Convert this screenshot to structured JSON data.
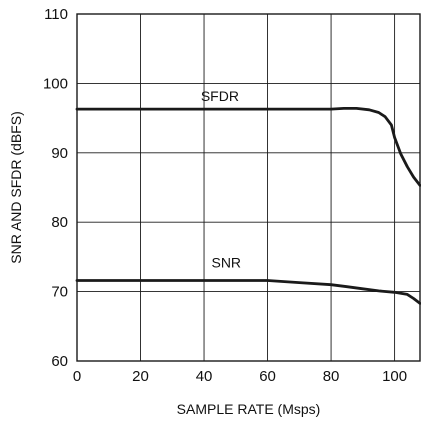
{
  "chart_data": {
    "type": "line",
    "title": "",
    "xlabel": "SAMPLE RATE (Msps)",
    "ylabel": "SNR AND SFDR (dBFS)",
    "xlim": [
      0,
      108
    ],
    "ylim": [
      60,
      110
    ],
    "xticks": [
      0,
      20,
      40,
      60,
      80,
      100
    ],
    "xtick_labels": [
      "0",
      "20",
      "40",
      "60",
      "80",
      "100"
    ],
    "yticks": [
      60,
      70,
      80,
      90,
      100,
      110
    ],
    "ytick_labels": [
      "60",
      "70",
      "80",
      "90",
      "100",
      "110"
    ],
    "grid": true,
    "legend": "none",
    "line_color": "#1a1a1a",
    "series": [
      {
        "name": "SFDR",
        "label_at": [
          45,
          97.5
        ],
        "x": [
          0,
          20,
          40,
          60,
          80,
          84,
          88,
          92,
          95,
          97,
          99,
          100,
          102,
          104,
          106,
          108
        ],
        "y": [
          96.3,
          96.3,
          96.3,
          96.3,
          96.3,
          96.4,
          96.4,
          96.2,
          95.8,
          95.2,
          94.0,
          92.2,
          89.8,
          88.0,
          86.5,
          85.3
        ]
      },
      {
        "name": "SNR",
        "label_at": [
          47,
          73.5
        ],
        "x": [
          0,
          20,
          40,
          60,
          70,
          80,
          85,
          90,
          95,
          100,
          104,
          106,
          108
        ],
        "y": [
          71.6,
          71.6,
          71.6,
          71.6,
          71.3,
          71.0,
          70.7,
          70.4,
          70.1,
          69.9,
          69.6,
          69.0,
          68.3
        ]
      }
    ]
  }
}
